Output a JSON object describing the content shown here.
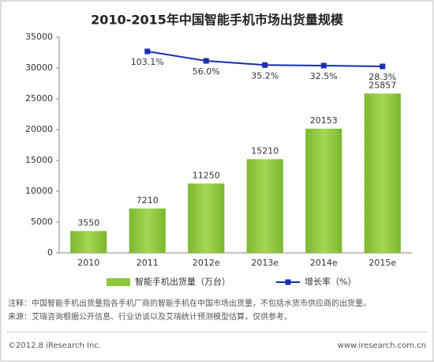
{
  "chart_data": {
    "type": "bar",
    "title": "2010-2015年中国智能手机市场出货量规模",
    "categories": [
      "2010",
      "2011",
      "2012e",
      "2013e",
      "2014e",
      "2015e"
    ],
    "series": [
      {
        "name": "智能手机出货量（万台）",
        "color": "#8dc63f",
        "values": [
          3550,
          7210,
          11250,
          15210,
          20153,
          25857
        ]
      },
      {
        "name": "增长率（%）",
        "color": "#1a2fb0",
        "type": "line",
        "axis": "y2",
        "values": [
          null,
          103.1,
          56.0,
          35.2,
          32.5,
          28.3
        ],
        "value_labels": [
          null,
          "103.1%",
          "56.0%",
          "35.2%",
          "32.5%",
          "28.3%"
        ]
      }
    ],
    "ylim": [
      0,
      35000
    ],
    "yticks": [
      0,
      5000,
      10000,
      15000,
      20000,
      25000,
      30000,
      35000
    ],
    "y2lim": [
      -900,
      174
    ],
    "notes": [
      "注释：中国智能手机出货量指各手机厂商的智能手机在中国市场出货量，不包括水货市供应商的出货量。",
      "来源：艾瑞咨询根据公开信息、行业访谈以及艾瑞统计预测模型估算，仅供参考。"
    ],
    "footer_left": "©2012.8 iResearch Inc.",
    "footer_right": "www.iresearch.com.cn"
  }
}
